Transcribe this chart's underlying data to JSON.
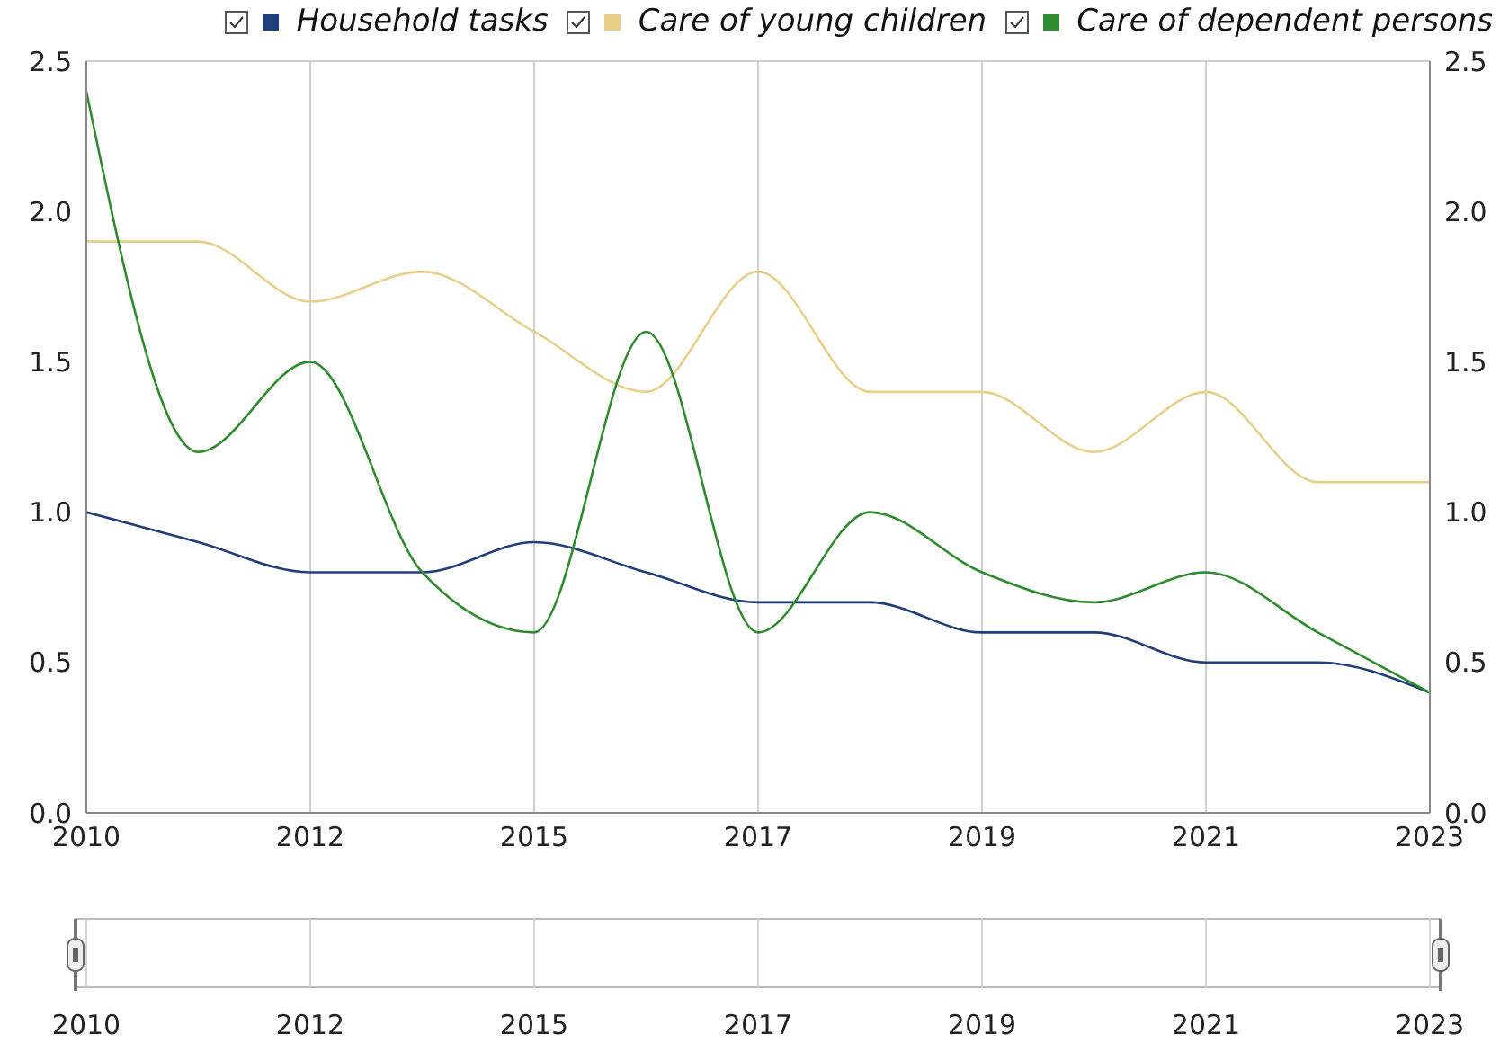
{
  "chart_data": {
    "type": "line",
    "categories": [
      "2010",
      null,
      "2012",
      null,
      "2015",
      null,
      "2017",
      null,
      "2019",
      null,
      "2021",
      null,
      "2023"
    ],
    "series": [
      {
        "name": "Household tasks",
        "color": "#1f3f7a",
        "values": [
          1.0,
          0.9,
          0.8,
          0.8,
          0.9,
          0.8,
          0.7,
          0.7,
          0.6,
          0.6,
          0.5,
          0.5,
          0.4
        ]
      },
      {
        "name": "Care of young children",
        "color": "#e8d08a",
        "values": [
          1.9,
          1.9,
          1.7,
          1.8,
          1.6,
          1.4,
          1.8,
          1.4,
          1.4,
          1.2,
          1.4,
          1.1,
          1.1
        ]
      },
      {
        "name": "Care of dependent persons",
        "color": "#2e8b2e",
        "values": [
          2.4,
          1.2,
          1.5,
          0.8,
          0.6,
          1.6,
          0.6,
          1.0,
          0.8,
          0.7,
          0.8,
          0.6,
          0.4
        ]
      }
    ],
    "ylim": [
      0,
      2.5
    ],
    "yticks": [
      {
        "value": 0,
        "label": "0.0"
      },
      {
        "value": 0.5,
        "label": "0.5"
      },
      {
        "value": 1,
        "label": "1.0"
      },
      {
        "value": 1.5,
        "label": "1.5"
      },
      {
        "value": 2,
        "label": "2.0"
      },
      {
        "value": 2.5,
        "label": "2.5"
      }
    ],
    "y2lim": [
      0,
      2.5
    ],
    "y2ticks": [
      {
        "value": 0,
        "label": "0.0"
      },
      {
        "value": 0.5,
        "label": "0.5"
      },
      {
        "value": 1,
        "label": "1.0"
      },
      {
        "value": 1.5,
        "label": "1.5"
      },
      {
        "value": 2,
        "label": "2.0"
      },
      {
        "value": 2.5,
        "label": "2.5"
      }
    ],
    "grid": true,
    "legend": "top",
    "marker": "none",
    "line_style": "solid"
  }
}
